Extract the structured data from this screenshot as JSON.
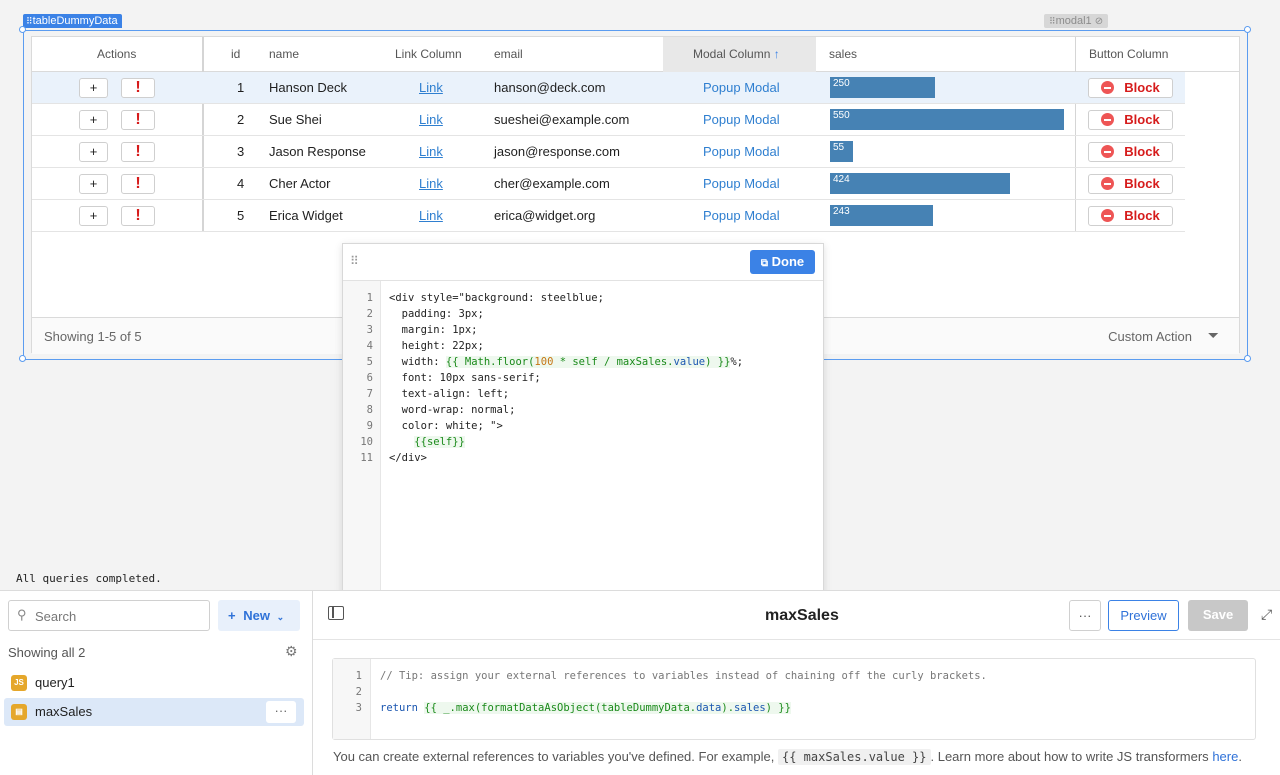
{
  "canvas": {
    "component_tag": "tableDummyData",
    "modal_tag": "modal1"
  },
  "table": {
    "columns": {
      "actions": "Actions",
      "id": "id",
      "name": "name",
      "link": "Link Column",
      "email": "email",
      "modal": "Modal Column",
      "sales": "sales",
      "button": "Button Column"
    },
    "plus_label": "+",
    "excl_label": "!",
    "block_label": "Block",
    "rows": [
      {
        "id": "1",
        "name": "Hanson Deck",
        "link": "Link",
        "email": "hanson@deck.com",
        "modal": "Popup Modal",
        "sales": "250",
        "sales_pct": 45
      },
      {
        "id": "2",
        "name": "Sue Shei",
        "link": "Link",
        "email": "sueshei@example.com",
        "modal": "Popup Modal",
        "sales": "550",
        "sales_pct": 100
      },
      {
        "id": "3",
        "name": "Jason Response",
        "link": "Link",
        "email": "jason@response.com",
        "modal": "Popup Modal",
        "sales": "55",
        "sales_pct": 10
      },
      {
        "id": "4",
        "name": "Cher Actor",
        "link": "Link",
        "email": "cher@example.com",
        "modal": "Popup Modal",
        "sales": "424",
        "sales_pct": 77
      },
      {
        "id": "5",
        "name": "Erica Widget",
        "link": "Link",
        "email": "erica@widget.org",
        "modal": "Popup Modal",
        "sales": "243",
        "sales_pct": 44
      }
    ],
    "footer": {
      "showing": "Showing 1-5 of 5",
      "custom_action": "Custom Action"
    }
  },
  "cell_editor": {
    "done_label": "Done",
    "lines": [
      {
        "n": "1",
        "t": "<div style=\"background: steelblue;"
      },
      {
        "n": "2",
        "t": "  padding: 3px;"
      },
      {
        "n": "3",
        "t": "  margin: 1px;"
      },
      {
        "n": "4",
        "t": "  height: 22px;"
      },
      {
        "n": "5",
        "t": "  width: "
      },
      {
        "n": "6",
        "t": "  font: 10px sans-serif;"
      },
      {
        "n": "7",
        "t": "  text-align: left;"
      },
      {
        "n": "8",
        "t": "  word-wrap: normal;"
      },
      {
        "n": "9",
        "t": "  color: white; \">"
      },
      {
        "n": "10",
        "t": "    "
      },
      {
        "n": "11",
        "t": "</div>"
      }
    ],
    "line5_open": "{{ Math.floor(",
    "line5_num": "100",
    "line5_mid": " * self / maxSales.",
    "line5_prop": "value",
    "line5_close": ") }}",
    "line5_tail": "%;",
    "line10_tmpl": "{{self}}"
  },
  "status": "All queries completed.",
  "query_panel": {
    "search_placeholder": "Search",
    "new_label": "New",
    "showing_label": "Showing all 2",
    "items": [
      {
        "name": "query1",
        "icon": "JS"
      },
      {
        "name": "maxSales",
        "icon": "transformer-icon"
      }
    ]
  },
  "editor": {
    "title": "maxSales",
    "more_label": "···",
    "preview_label": "Preview",
    "save_label": "Save",
    "code": {
      "l1": "// Tip: assign your external references to variables instead of chaining off the curly brackets.",
      "l3_kw": "return",
      "l3_expr": "{{ _.max(formatDataAsObject(tableDummyData.",
      "l3_prop": "data",
      "l3_mid": ").",
      "l3_prop2": "sales",
      "l3_end": ") }}"
    },
    "help_before": "You can create external references to variables you've defined. For example,",
    "help_code": "{{ maxSales.value }}",
    "help_after": ". Learn more about how to write JS transformers",
    "help_link": "here",
    "help_end": "."
  },
  "colors": {
    "accent": "#3b82e6",
    "bar": "#4682b4",
    "danger": "#d61b1b"
  }
}
